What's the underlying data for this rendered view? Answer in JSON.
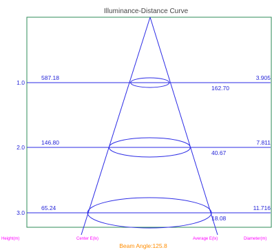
{
  "chart_data": {
    "type": "line",
    "title": "Illuminance-Distance Curve",
    "footer_label": "Beam Angle:125.8",
    "bottom_labels": {
      "height": "Height(m)",
      "center": "Center E(lx)",
      "average": "Average E(lx)",
      "diameter": "Diameter(m)"
    },
    "rows": [
      {
        "height_label": "1.0",
        "center": "587.18",
        "average": "162.70",
        "diameter": "3.905"
      },
      {
        "height_label": "2.0",
        "center": "146.80",
        "average": "40.67",
        "diameter": "7.811"
      },
      {
        "height_label": "3.0",
        "center": "65.24",
        "average": "18.08",
        "diameter": "11.716"
      }
    ],
    "colors": {
      "title": "#444444",
      "frame": "#2e8b57",
      "lines": "#2a2ae5",
      "numbers": "#1f1fd6",
      "axis_labels": "#ff00ff",
      "beam_label": "#ff8c00"
    }
  }
}
